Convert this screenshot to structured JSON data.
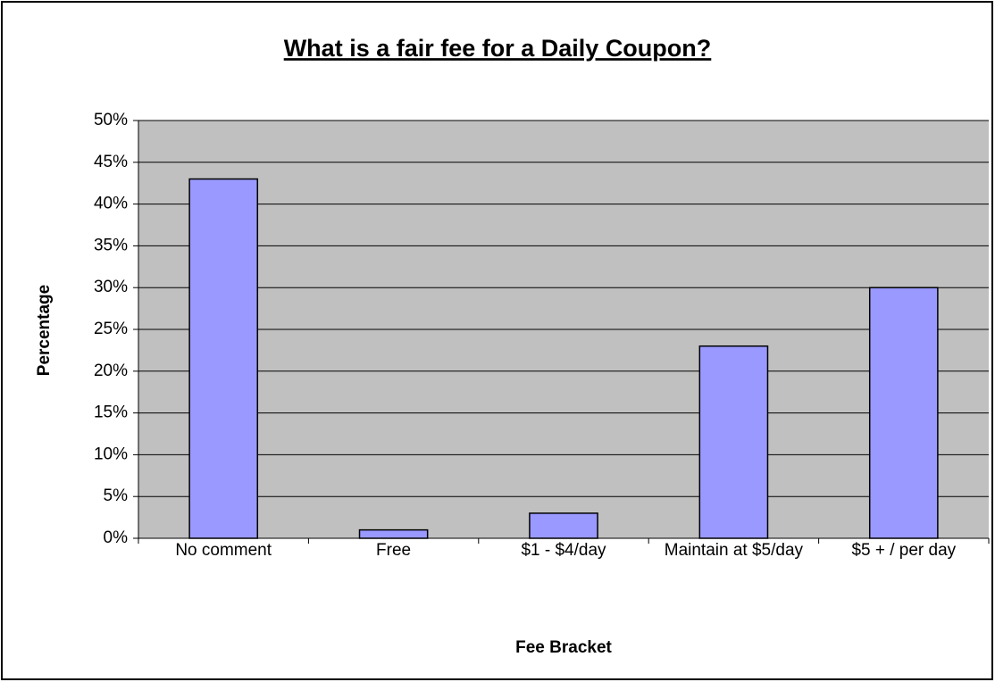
{
  "chart_data": {
    "type": "bar",
    "title": "What is a fair fee for a Daily Coupon?",
    "categories": [
      "No comment",
      "Free",
      "$1 - $4/day",
      "Maintain at $5/day",
      "$5 + / per day"
    ],
    "values": [
      43,
      1,
      3,
      23,
      30
    ],
    "color": "#9999ff",
    "xlabel": "Fee Bracket",
    "ylabel": "Percentage",
    "ylim": [
      0,
      50
    ],
    "yticks": [
      {
        "value": 0,
        "label": "0%"
      },
      {
        "value": 5,
        "label": "5%"
      },
      {
        "value": 10,
        "label": "10%"
      },
      {
        "value": 15,
        "label": "15%"
      },
      {
        "value": 20,
        "label": "20%"
      },
      {
        "value": 25,
        "label": "25%"
      },
      {
        "value": 30,
        "label": "30%"
      },
      {
        "value": 35,
        "label": "35%"
      },
      {
        "value": 40,
        "label": "40%"
      },
      {
        "value": 45,
        "label": "45%"
      },
      {
        "value": 50,
        "label": "50%"
      }
    ],
    "grid": true
  }
}
